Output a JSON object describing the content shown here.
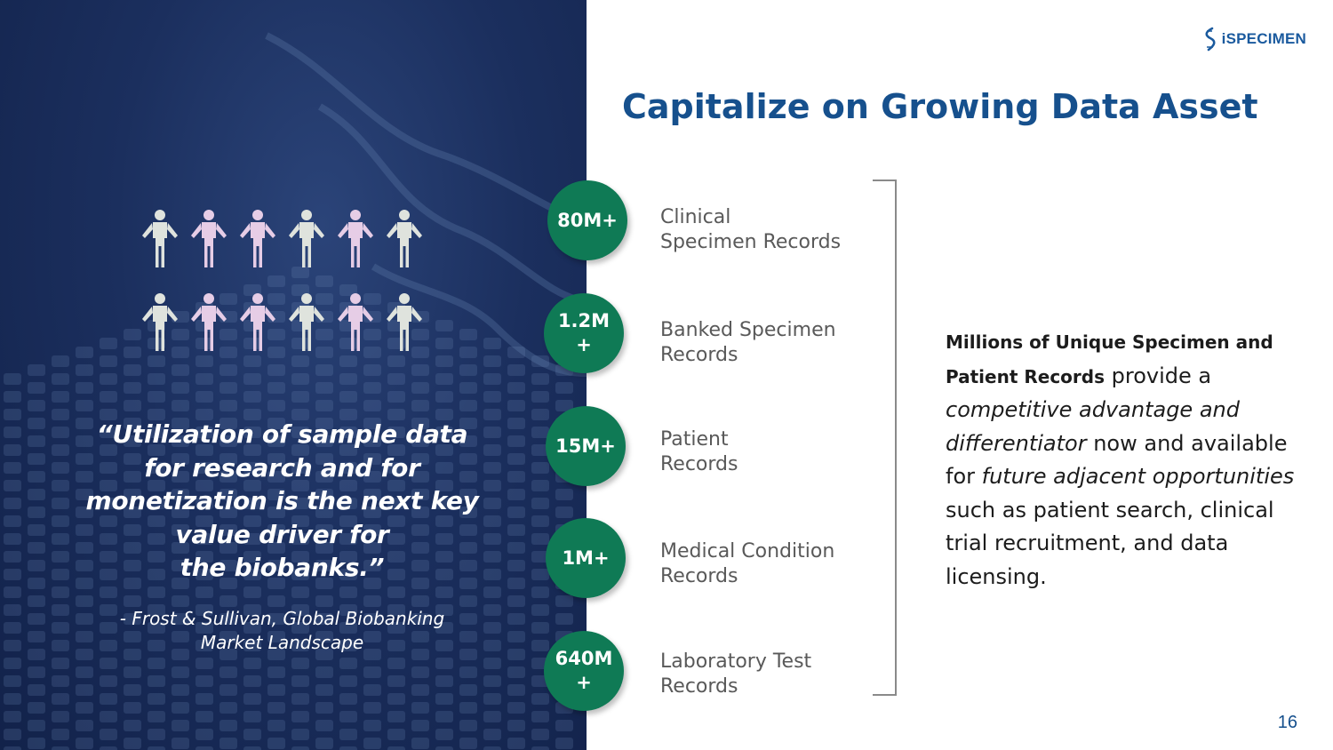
{
  "brand": {
    "logo_text": "iSPECIMEN",
    "logo_mark": "trademark",
    "logo_icon": "helix-icon",
    "color": "#1a5a9e"
  },
  "slide": {
    "title": "Capitalize on Growing Data Asset",
    "page_number": "16"
  },
  "colors": {
    "title": "#16508d",
    "stat_circle": "#0f7a55",
    "left_panel": "#1b2f5e",
    "person_light": "#dfe3dd",
    "person_pink": "#e6cde6"
  },
  "left_panel": {
    "people_rows": [
      [
        "light",
        "pink",
        "pink",
        "light",
        "pink",
        "light"
      ],
      [
        "light",
        "pink",
        "pink",
        "light",
        "pink",
        "light"
      ]
    ],
    "quote_lines": [
      "“Utilization of sample data",
      "for research and for",
      "monetization is the next key",
      "value driver for",
      "the biobanks.”"
    ],
    "attribution_lines": [
      "- Frost & Sullivan, Global Biobanking",
      "Market Landscape"
    ]
  },
  "stats": [
    {
      "value_lines": [
        "80M+"
      ],
      "label_lines": [
        "Clinical",
        "Specimen Records"
      ]
    },
    {
      "value_lines": [
        "1.2M",
        "+"
      ],
      "label_lines": [
        "Banked Specimen",
        "Records"
      ]
    },
    {
      "value_lines": [
        "15M+"
      ],
      "label_lines": [
        "Patient",
        "Records"
      ]
    },
    {
      "value_lines": [
        "1M+"
      ],
      "label_lines": [
        "Medical Condition",
        "Records"
      ]
    },
    {
      "value_lines": [
        "640M",
        "+"
      ],
      "label_lines": [
        "Laboratory Test",
        "Records"
      ]
    }
  ],
  "summary": {
    "bold_line_1": "Millions of Unique Specimen and",
    "bold_line_2": "Patient Records",
    "text_1": " provide a ",
    "italic_1": "competitive advantage and differentiator",
    "text_2": " now and available for ",
    "italic_2": "future adjacent opportunities",
    "text_3": " such as patient search, clinical trial recruitment, and data licensing."
  }
}
